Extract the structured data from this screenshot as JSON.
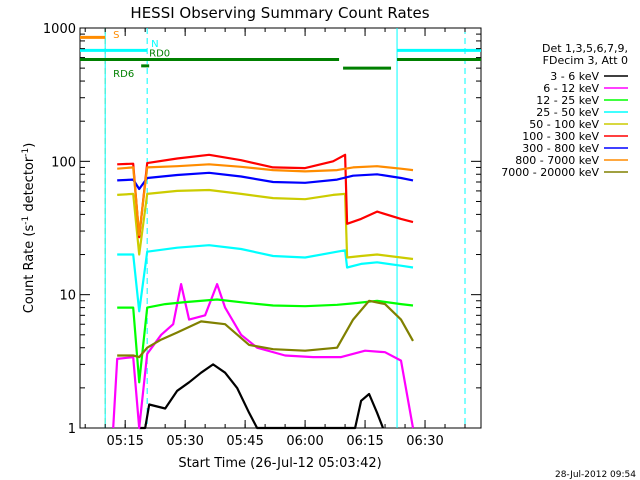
{
  "timestamp": "28-Jul-2012 09:54",
  "chart_data": {
    "type": "line",
    "title": "HESSI Observing Summary Count Rates",
    "xlabel": "Start Time (26-Jul-12 05:03:42)",
    "ylabel_main": "Count Rate (s",
    "ylabel_sup1": "-1",
    "ylabel_mid": " detector",
    "ylabel_sup2": "-1",
    "ylabel_end": ")",
    "y_scale": "log",
    "ylim": [
      1,
      1000
    ],
    "xlim": [
      "05:03:42",
      "06:44:00"
    ],
    "x_ticks": [
      "05:15",
      "05:30",
      "05:45",
      "06:00",
      "06:15",
      "06:30"
    ],
    "y_ticks": [
      "1",
      "10",
      "100",
      "1000"
    ],
    "legend_placement": "right",
    "legend_header": [
      "Det 1,3,5,6,7,9,",
      "FDecim 3, Att 0"
    ],
    "series": [
      {
        "name": "3 - 6 keV",
        "color": "#000000",
        "points": [
          [
            "05:18:30",
            1.0
          ],
          [
            "05:20:00",
            1.0
          ],
          [
            "05:21:00",
            1.5
          ],
          [
            "05:25:00",
            1.4
          ],
          [
            "05:28:00",
            1.9
          ],
          [
            "05:31:00",
            2.2
          ],
          [
            "05:34:00",
            2.6
          ],
          [
            "05:37:00",
            3.0
          ],
          [
            "05:40:00",
            2.6
          ],
          [
            "05:43:00",
            2.0
          ],
          [
            "05:46:00",
            1.3
          ],
          [
            "05:48:00",
            1.0
          ],
          [
            "06:12:30",
            1.0
          ],
          [
            "06:14:00",
            1.6
          ],
          [
            "06:16:00",
            1.8
          ],
          [
            "06:18:00",
            1.3
          ],
          [
            "06:19:30",
            1.0
          ]
        ]
      },
      {
        "name": "6 - 12 keV",
        "color": "#ff00ff",
        "points": [
          [
            "05:12:00",
            1.0
          ],
          [
            "05:13:00",
            3.3
          ],
          [
            "05:17:00",
            3.4
          ],
          [
            "05:18:30",
            1.0
          ],
          [
            "05:20:30",
            3.6
          ],
          [
            "05:24:00",
            5.0
          ],
          [
            "05:27:00",
            6.0
          ],
          [
            "05:29:00",
            12.0
          ],
          [
            "05:31:00",
            6.5
          ],
          [
            "05:35:00",
            7.0
          ],
          [
            "05:38:00",
            12.0
          ],
          [
            "05:40:00",
            8.0
          ],
          [
            "05:44:00",
            5.0
          ],
          [
            "05:48:00",
            4.0
          ],
          [
            "05:55:00",
            3.5
          ],
          [
            "06:02:00",
            3.4
          ],
          [
            "06:09:00",
            3.4
          ],
          [
            "06:15:00",
            3.8
          ],
          [
            "06:20:00",
            3.7
          ],
          [
            "06:24:00",
            3.2
          ],
          [
            "06:27:00",
            1.0
          ]
        ]
      },
      {
        "name": "12 - 25 keV",
        "color": "#00ff00",
        "points": [
          [
            "05:13:00",
            8.0
          ],
          [
            "05:17:00",
            8.0
          ],
          [
            "05:18:30",
            2.2
          ],
          [
            "05:20:30",
            8.0
          ],
          [
            "05:25:00",
            8.5
          ],
          [
            "05:30:00",
            8.8
          ],
          [
            "05:38:00",
            9.2
          ],
          [
            "05:45:00",
            8.7
          ],
          [
            "05:52:00",
            8.3
          ],
          [
            "06:00:00",
            8.2
          ],
          [
            "06:08:00",
            8.4
          ],
          [
            "06:12:00",
            8.6
          ],
          [
            "06:18:00",
            9.0
          ],
          [
            "06:24:00",
            8.5
          ],
          [
            "06:27:00",
            8.3
          ]
        ]
      },
      {
        "name": "25 - 50 keV",
        "color": "#00ffff",
        "points": [
          [
            "05:13:00",
            20.0
          ],
          [
            "05:17:00",
            20.0
          ],
          [
            "05:18:30",
            7.5
          ],
          [
            "05:20:30",
            21.0
          ],
          [
            "05:28:00",
            22.5
          ],
          [
            "05:36:00",
            23.5
          ],
          [
            "05:44:00",
            22.0
          ],
          [
            "05:52:00",
            19.5
          ],
          [
            "06:00:00",
            19.0
          ],
          [
            "06:08:00",
            21.0
          ],
          [
            "06:10:00",
            21.5
          ],
          [
            "06:10:30",
            16.0
          ],
          [
            "06:14:00",
            17.0
          ],
          [
            "06:18:00",
            17.5
          ],
          [
            "06:24:00",
            16.5
          ],
          [
            "06:27:00",
            16.0
          ]
        ]
      },
      {
        "name": "50 - 100 keV",
        "color": "#cccc00",
        "points": [
          [
            "05:13:00",
            56.0
          ],
          [
            "05:17:00",
            57.0
          ],
          [
            "05:18:30",
            20.0
          ],
          [
            "05:20:30",
            57.0
          ],
          [
            "05:28:00",
            60.0
          ],
          [
            "05:36:00",
            61.0
          ],
          [
            "05:44:00",
            57.0
          ],
          [
            "05:52:00",
            53.0
          ],
          [
            "06:00:00",
            52.0
          ],
          [
            "06:07:00",
            56.0
          ],
          [
            "06:10:00",
            57.0
          ],
          [
            "06:10:30",
            19.0
          ],
          [
            "06:14:00",
            19.5
          ],
          [
            "06:18:00",
            20.0
          ],
          [
            "06:24:00",
            19.0
          ],
          [
            "06:27:00",
            18.5
          ]
        ]
      },
      {
        "name": "100 - 300 keV",
        "color": "#ff0000",
        "points": [
          [
            "05:13:00",
            95.0
          ],
          [
            "05:17:00",
            96.0
          ],
          [
            "05:18:30",
            27.0
          ],
          [
            "05:20:30",
            97.0
          ],
          [
            "05:28:00",
            105.0
          ],
          [
            "05:36:00",
            112.0
          ],
          [
            "05:44:00",
            102.0
          ],
          [
            "05:52:00",
            90.0
          ],
          [
            "06:00:00",
            89.0
          ],
          [
            "06:07:00",
            100.0
          ],
          [
            "06:10:00",
            112.0
          ],
          [
            "06:10:30",
            34.0
          ],
          [
            "06:14:00",
            37.0
          ],
          [
            "06:18:00",
            42.0
          ],
          [
            "06:24:00",
            37.0
          ],
          [
            "06:27:00",
            35.0
          ]
        ]
      },
      {
        "name": "300 - 800 keV",
        "color": "#0000ff",
        "points": [
          [
            "05:13:00",
            72.0
          ],
          [
            "05:17:00",
            73.0
          ],
          [
            "05:18:30",
            62.0
          ],
          [
            "05:20:30",
            75.0
          ],
          [
            "05:28:00",
            79.0
          ],
          [
            "05:36:00",
            82.0
          ],
          [
            "05:44:00",
            77.0
          ],
          [
            "05:52:00",
            70.0
          ],
          [
            "06:00:00",
            69.0
          ],
          [
            "06:08:00",
            73.0
          ],
          [
            "06:12:00",
            78.0
          ],
          [
            "06:18:00",
            80.0
          ],
          [
            "06:24:00",
            75.0
          ],
          [
            "06:27:00",
            72.0
          ]
        ]
      },
      {
        "name": "800 - 7000 keV",
        "color": "#ff8c00",
        "points": [
          [
            "05:13:00",
            88.0
          ],
          [
            "05:17:00",
            90.0
          ],
          [
            "05:18:30",
            28.0
          ],
          [
            "05:20:30",
            90.0
          ],
          [
            "05:28:00",
            92.0
          ],
          [
            "05:36:00",
            95.0
          ],
          [
            "05:44:00",
            91.0
          ],
          [
            "05:52:00",
            86.0
          ],
          [
            "06:00:00",
            84.0
          ],
          [
            "06:08:00",
            86.0
          ],
          [
            "06:12:00",
            90.0
          ],
          [
            "06:18:00",
            92.0
          ],
          [
            "06:24:00",
            88.0
          ],
          [
            "06:27:00",
            86.0
          ]
        ]
      },
      {
        "name": "7000 - 20000 keV",
        "color": "#808000",
        "points": [
          [
            "05:13:00",
            3.5
          ],
          [
            "05:17:00",
            3.5
          ],
          [
            "05:18:30",
            3.4
          ],
          [
            "05:20:30",
            4.0
          ],
          [
            "05:24:00",
            4.6
          ],
          [
            "05:28:00",
            5.2
          ],
          [
            "05:34:00",
            6.3
          ],
          [
            "05:40:00",
            6.0
          ],
          [
            "05:46:00",
            4.2
          ],
          [
            "05:52:00",
            3.9
          ],
          [
            "06:00:00",
            3.8
          ],
          [
            "06:08:00",
            4.0
          ],
          [
            "06:12:00",
            6.5
          ],
          [
            "06:16:00",
            9.0
          ],
          [
            "06:20:00",
            8.5
          ],
          [
            "06:24:00",
            6.5
          ],
          [
            "06:27:00",
            4.5
          ]
        ]
      }
    ],
    "flags": [
      {
        "label": "S",
        "color": "#ff8c00",
        "start": "05:03:42",
        "end": "05:10:00",
        "level": 850
      },
      {
        "label": "N",
        "color": "#00ffff",
        "start": "05:03:42",
        "end": "05:20:30",
        "level": 680
      },
      {
        "label": "N",
        "color": "#00ffff",
        "start": "06:23:00",
        "end": "06:44:00",
        "level": 680
      },
      {
        "label": "RD6",
        "color": "#008000",
        "start": "05:03:42",
        "end": "06:08:30",
        "level": 580
      },
      {
        "label": "RD6",
        "color": "#008000",
        "start": "06:09:30",
        "end": "06:21:30",
        "level": 500
      },
      {
        "label": "RD6",
        "color": "#008000",
        "start": "06:23:00",
        "end": "06:44:00",
        "level": 580
      },
      {
        "label": "RD0",
        "color": "#008000",
        "start": "05:19:00",
        "end": "05:21:00",
        "level": 520
      }
    ],
    "vlines": [
      {
        "time": "05:10:00",
        "color": "#ff8c00",
        "style": "dashed"
      },
      {
        "time": "05:20:30",
        "color": "#00ffff",
        "style": "dashed"
      },
      {
        "time": "06:40:00",
        "color": "#00ffff",
        "style": "dashed"
      },
      {
        "time": "05:10:00",
        "color": "#00ffff",
        "style": "solid"
      },
      {
        "time": "06:23:00",
        "color": "#00ffff",
        "style": "solid"
      }
    ],
    "flag_labels": [
      {
        "text": "S",
        "color": "#ff8c00",
        "time": "05:12:00",
        "level": 840
      },
      {
        "text": "N",
        "color": "#00ffff",
        "time": "05:21:30",
        "level": 720
      },
      {
        "text": "RD0",
        "color": "#008000",
        "time": "05:21:00",
        "level": 610
      },
      {
        "text": "RD6",
        "color": "#008000",
        "time": "05:12:00",
        "level": 430
      }
    ]
  }
}
